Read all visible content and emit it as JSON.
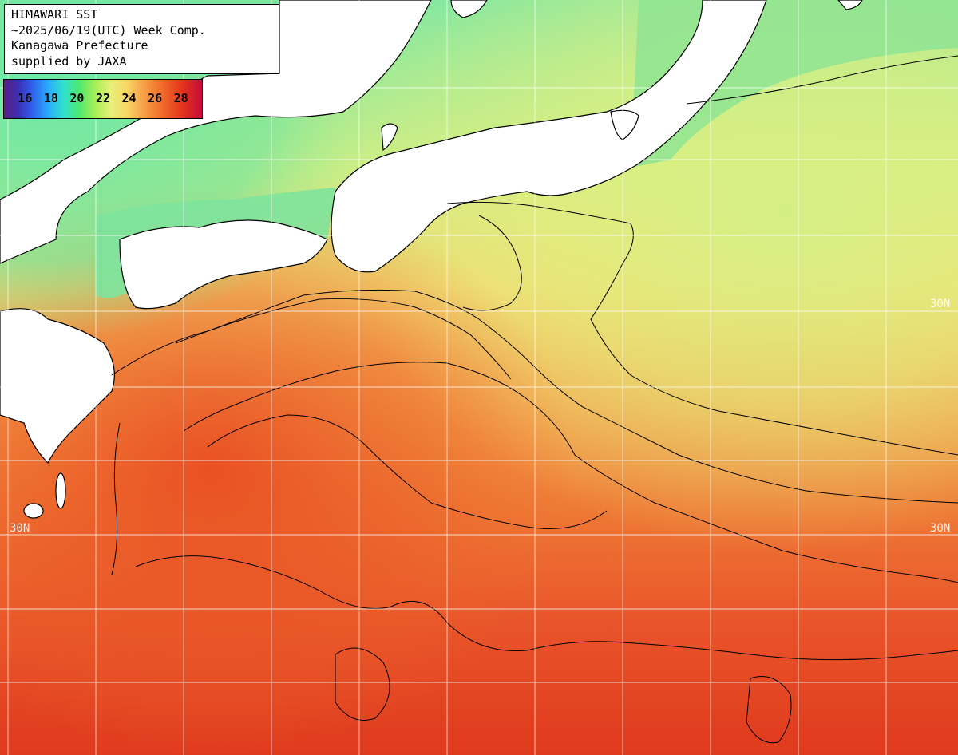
{
  "header": {
    "line1": "HIMAWARI SST",
    "line2": "~2025/06/19(UTC) Week Comp.",
    "line3": "Kanagawa Prefecture",
    "line4": "supplied by JAXA"
  },
  "legend": {
    "labels": [
      "16",
      "18",
      "20",
      "22",
      "24",
      "26",
      "28"
    ],
    "colors": [
      "#5a1f82",
      "#2f5de8",
      "#2aa9ff",
      "#4fe870",
      "#e7f07a",
      "#f6a24a",
      "#e3341b",
      "#c40b3a"
    ]
  },
  "grid_labels": {
    "lat_left": "30N",
    "lat_right_mid": "30N",
    "lat_right_top": "30N"
  },
  "map_colors": {
    "land": "#ffffff",
    "grid": "#ffffff",
    "contour": "#000000",
    "sst_cool": "#7de39a",
    "sst_mid": "#e8f07c",
    "sst_warm": "#f5a448",
    "sst_hot": "#e8401e"
  }
}
